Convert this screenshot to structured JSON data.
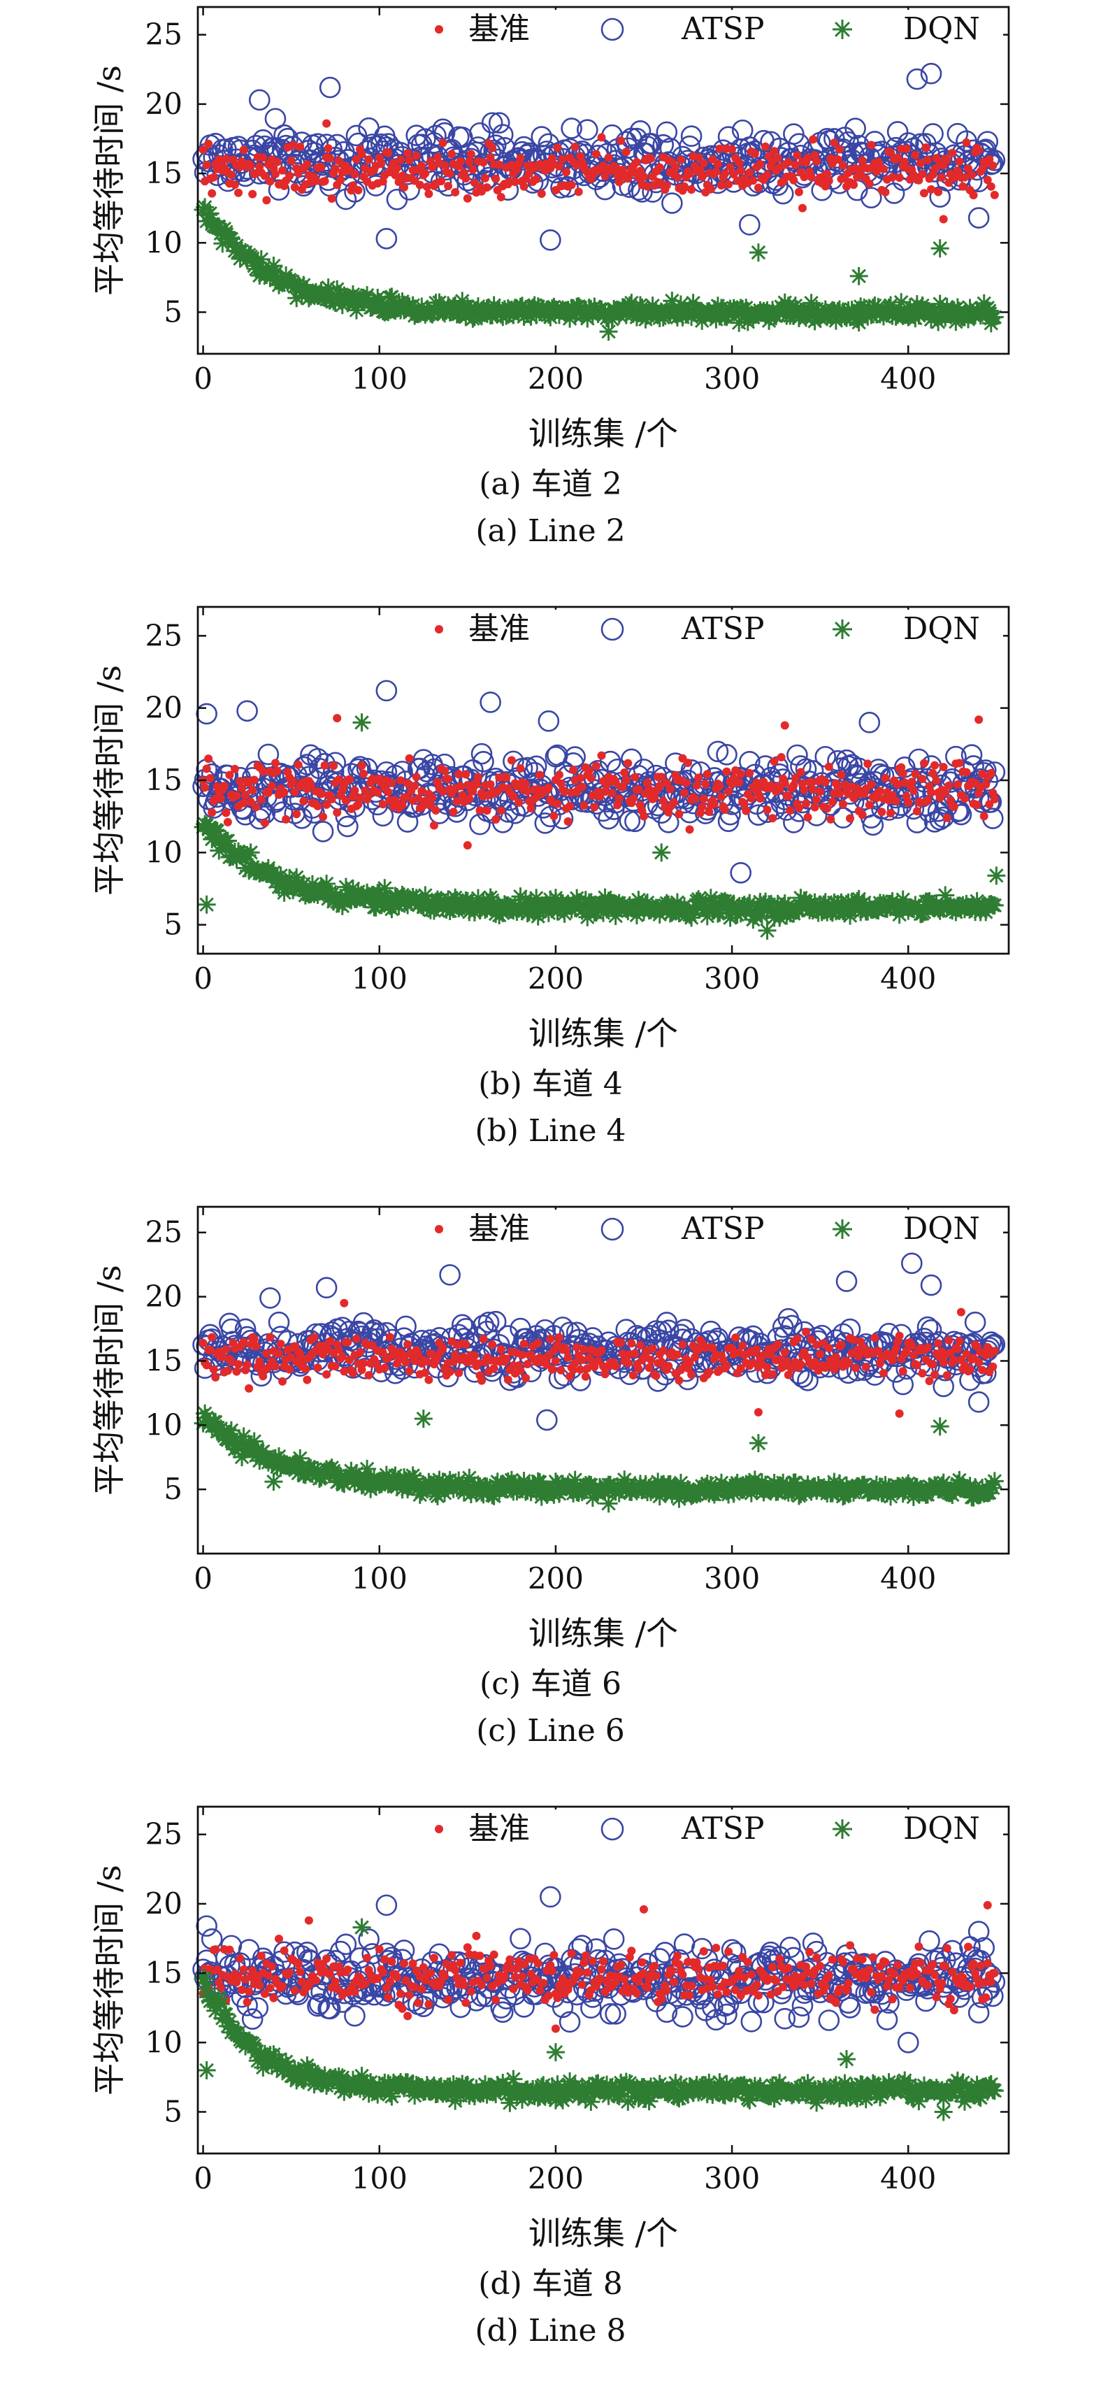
{
  "chart_data": [
    {
      "type": "scatter",
      "caption_cn": "(a) 车道 2",
      "caption_en": "(a) Line 2",
      "xlabel": "训练集 /个",
      "ylabel": "平均等待时间 /s",
      "xlim": [
        -3,
        457
      ],
      "ylim": [
        2,
        27
      ],
      "xticks": [
        "0",
        "100",
        "200",
        "300",
        "400"
      ],
      "yticks": [
        "5",
        "10",
        "15",
        "20",
        "25"
      ],
      "legend": [
        "基准",
        "ATSP",
        "DQN"
      ],
      "legend_position": "top",
      "colors": {
        "baseline": "#e32a2a",
        "atsp": "#3a46a5",
        "dqn": "#2e7d32"
      },
      "series": [
        {
          "name": "基准",
          "mean": 15.2,
          "spread": 1.7,
          "outliers": [
            [
              14,
              10.8
            ],
            [
              70,
              18.6
            ],
            [
              340,
              12.5
            ],
            [
              420,
              11.7
            ]
          ]
        },
        {
          "name": "ATSP",
          "mean": 16.0,
          "spread": 2.2,
          "outliers": [
            [
              32,
              20.3
            ],
            [
              72,
              21.2
            ],
            [
              104,
              10.3
            ],
            [
              197,
              10.2
            ],
            [
              310,
              11.3
            ],
            [
              405,
              21.8
            ],
            [
              413,
              22.2
            ],
            [
              440,
              11.8
            ]
          ]
        },
        {
          "name": "DQN",
          "start": 12.5,
          "end": 5.0,
          "decay": 38,
          "noise": 0.7,
          "outliers": [
            [
              230,
              3.6
            ],
            [
              315,
              9.3
            ],
            [
              372,
              7.6
            ],
            [
              418,
              9.6
            ],
            [
              447,
              4.2
            ]
          ]
        }
      ]
    },
    {
      "type": "scatter",
      "caption_cn": "(b) 车道 4",
      "caption_en": "(b) Line 4",
      "xlabel": "训练集 /个",
      "ylabel": "平均等待时间 /s",
      "xlim": [
        -3,
        457
      ],
      "ylim": [
        3,
        27
      ],
      "xticks": [
        "0",
        "100",
        "200",
        "300",
        "400"
      ],
      "yticks": [
        "5",
        "10",
        "15",
        "20",
        "25"
      ],
      "legend": [
        "基准",
        "ATSP",
        "DQN"
      ],
      "legend_position": "top",
      "colors": {
        "baseline": "#e32a2a",
        "atsp": "#3a46a5",
        "dqn": "#2e7d32"
      },
      "series": [
        {
          "name": "基准",
          "mean": 14.3,
          "spread": 1.8,
          "outliers": [
            [
              76,
              19.3
            ],
            [
              150,
              10.5
            ],
            [
              330,
              18.8
            ],
            [
              440,
              19.2
            ]
          ]
        },
        {
          "name": "ATSP",
          "mean": 14.3,
          "spread": 2.3,
          "outliers": [
            [
              2,
              19.6
            ],
            [
              25,
              19.8
            ],
            [
              104,
              21.2
            ],
            [
              163,
              20.4
            ],
            [
              196,
              19.1
            ],
            [
              305,
              8.6
            ],
            [
              378,
              19.0
            ]
          ]
        },
        {
          "name": "DQN",
          "start": 12.0,
          "end": 6.2,
          "decay": 40,
          "noise": 0.7,
          "outliers": [
            [
              2,
              6.4
            ],
            [
              90,
              19.0
            ],
            [
              260,
              10.0
            ],
            [
              320,
              4.6
            ],
            [
              450,
              8.4
            ]
          ]
        }
      ]
    },
    {
      "type": "scatter",
      "caption_cn": "(c) 车道 6",
      "caption_en": "(c) Line 6",
      "xlabel": "训练集 /个",
      "ylabel": "平均等待时间 /s",
      "xlim": [
        -3,
        457
      ],
      "ylim": [
        0,
        27
      ],
      "xticks": [
        "0",
        "100",
        "200",
        "300",
        "400"
      ],
      "yticks": [
        "5",
        "10",
        "15",
        "20",
        "25"
      ],
      "legend": [
        "基准",
        "ATSP",
        "DQN"
      ],
      "legend_position": "top",
      "colors": {
        "baseline": "#e32a2a",
        "atsp": "#3a46a5",
        "dqn": "#2e7d32"
      },
      "series": [
        {
          "name": "基准",
          "mean": 15.2,
          "spread": 1.6,
          "outliers": [
            [
              80,
              19.5
            ],
            [
              315,
              11.0
            ],
            [
              395,
              10.9
            ],
            [
              430,
              18.8
            ]
          ]
        },
        {
          "name": "ATSP",
          "mean": 15.8,
          "spread": 2.0,
          "outliers": [
            [
              38,
              19.9
            ],
            [
              70,
              20.7
            ],
            [
              140,
              21.7
            ],
            [
              195,
              10.4
            ],
            [
              365,
              21.2
            ],
            [
              402,
              22.6
            ],
            [
              413,
              20.9
            ],
            [
              440,
              11.8
            ]
          ]
        },
        {
          "name": "DQN",
          "start": 10.5,
          "end": 5.0,
          "decay": 45,
          "noise": 0.7,
          "outliers": [
            [
              40,
              5.6
            ],
            [
              125,
              10.5
            ],
            [
              230,
              3.9
            ],
            [
              315,
              8.6
            ],
            [
              418,
              9.9
            ]
          ]
        }
      ]
    },
    {
      "type": "scatter",
      "caption_cn": "(d) 车道 8",
      "caption_en": "(d) Line 8",
      "xlabel": "训练集 /个",
      "ylabel": "平均等待时间 /s",
      "xlim": [
        -3,
        457
      ],
      "ylim": [
        2,
        27
      ],
      "xticks": [
        "0",
        "100",
        "200",
        "300",
        "400"
      ],
      "yticks": [
        "5",
        "10",
        "15",
        "20",
        "25"
      ],
      "legend": [
        "基准",
        "ATSP",
        "DQN"
      ],
      "legend_position": "top",
      "colors": {
        "baseline": "#e32a2a",
        "atsp": "#3a46a5",
        "dqn": "#2e7d32"
      },
      "series": [
        {
          "name": "基准",
          "mean": 14.7,
          "spread": 1.8,
          "outliers": [
            [
              60,
              18.8
            ],
            [
              200,
              11.0
            ],
            [
              250,
              19.6
            ],
            [
              445,
              19.9
            ]
          ]
        },
        {
          "name": "ATSP",
          "mean": 14.5,
          "spread": 2.3,
          "outliers": [
            [
              2,
              18.4
            ],
            [
              104,
              19.9
            ],
            [
              197,
              20.5
            ],
            [
              400,
              10.0
            ],
            [
              440,
              18.0
            ]
          ]
        },
        {
          "name": "DQN",
          "start": 14.5,
          "end": 6.5,
          "decay": 30,
          "noise": 0.7,
          "outliers": [
            [
              2,
              8.0
            ],
            [
              90,
              18.3
            ],
            [
              200,
              9.3
            ],
            [
              365,
              8.8
            ],
            [
              420,
              5.0
            ]
          ]
        }
      ]
    }
  ]
}
